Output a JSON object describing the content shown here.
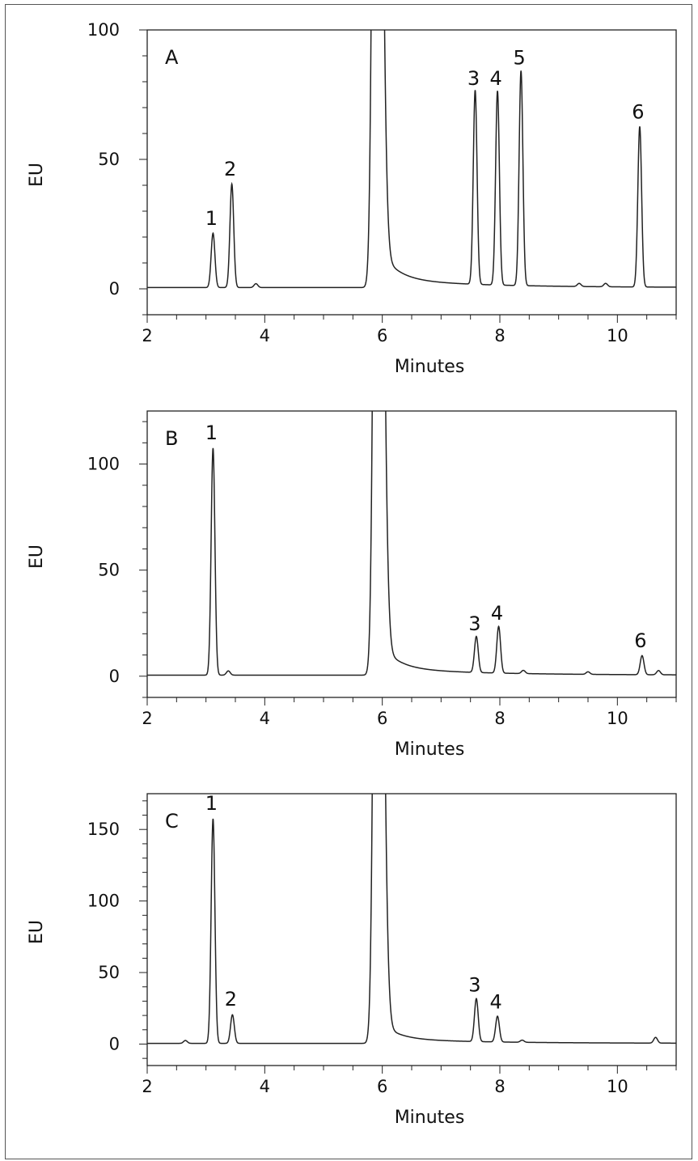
{
  "chart_data": [
    {
      "type": "line",
      "panel_label": "A",
      "xlabel": "Minutes",
      "ylabel": "EU",
      "xlim": [
        2,
        11
      ],
      "ylim": [
        -10,
        100
      ],
      "xticks": [
        2,
        4,
        6,
        8,
        10
      ],
      "yticks": [
        0,
        50,
        100
      ],
      "grid": false,
      "baseline": 0.5,
      "peaks": [
        {
          "label": "1",
          "x": 3.12,
          "y": 21
        },
        {
          "label": "2",
          "x": 3.44,
          "y": 40
        },
        {
          "label": "",
          "x": 3.85,
          "y": 1.5
        },
        {
          "label": "",
          "x": 5.9,
          "y": 400
        },
        {
          "label": "3",
          "x": 7.58,
          "y": 75
        },
        {
          "label": "4",
          "x": 7.96,
          "y": 75
        },
        {
          "label": "5",
          "x": 8.36,
          "y": 83
        },
        {
          "label": "",
          "x": 9.35,
          "y": 1.2
        },
        {
          "label": "",
          "x": 9.8,
          "y": 1.3
        },
        {
          "label": "6",
          "x": 10.38,
          "y": 62
        }
      ]
    },
    {
      "type": "line",
      "panel_label": "B",
      "xlabel": "Minutes",
      "ylabel": "EU",
      "xlim": [
        2,
        11
      ],
      "ylim": [
        -10,
        125
      ],
      "xticks": [
        2,
        4,
        6,
        8,
        10
      ],
      "yticks": [
        0,
        50,
        100
      ],
      "grid": false,
      "baseline": 0.5,
      "peaks": [
        {
          "label": "1",
          "x": 3.12,
          "y": 107
        },
        {
          "label": "",
          "x": 3.38,
          "y": 2
        },
        {
          "label": "",
          "x": 5.92,
          "y": 500
        },
        {
          "label": "3",
          "x": 7.6,
          "y": 17
        },
        {
          "label": "4",
          "x": 7.98,
          "y": 22
        },
        {
          "label": "",
          "x": 8.4,
          "y": 1.5
        },
        {
          "label": "",
          "x": 9.5,
          "y": 1.2
        },
        {
          "label": "6",
          "x": 10.42,
          "y": 9
        },
        {
          "label": "",
          "x": 10.7,
          "y": 2
        }
      ]
    },
    {
      "type": "line",
      "panel_label": "C",
      "xlabel": "Minutes",
      "ylabel": "EU",
      "xlim": [
        2,
        11
      ],
      "ylim": [
        -15,
        175
      ],
      "xticks": [
        2,
        4,
        6,
        8,
        10
      ],
      "yticks": [
        0,
        50,
        100,
        150
      ],
      "grid": false,
      "baseline": 0.5,
      "peaks": [
        {
          "label": "",
          "x": 2.65,
          "y": 2
        },
        {
          "label": "1",
          "x": 3.12,
          "y": 157
        },
        {
          "label": "2",
          "x": 3.45,
          "y": 20
        },
        {
          "label": "",
          "x": 5.92,
          "y": 700
        },
        {
          "label": "3",
          "x": 7.6,
          "y": 30
        },
        {
          "label": "4",
          "x": 7.96,
          "y": 18
        },
        {
          "label": "",
          "x": 8.38,
          "y": 1.5
        },
        {
          "label": "",
          "x": 10.65,
          "y": 4
        }
      ]
    }
  ]
}
